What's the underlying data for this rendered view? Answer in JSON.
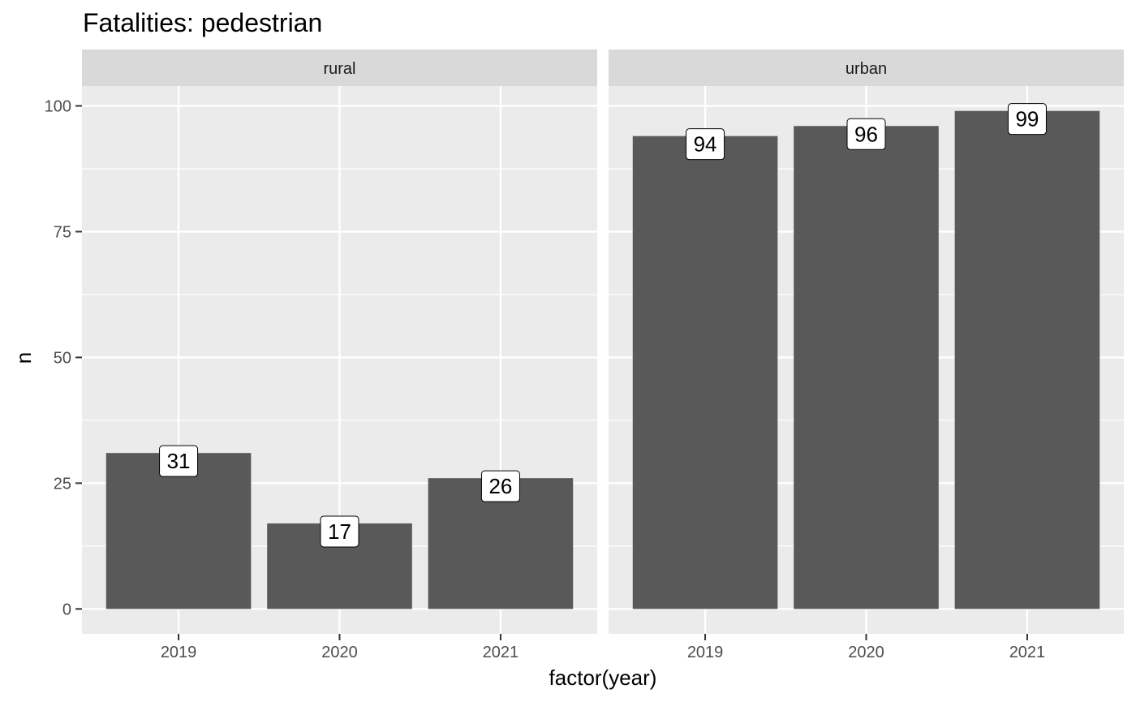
{
  "chart_data": {
    "type": "bar",
    "title": "Fatalities: pedestrian",
    "xlabel": "factor(year)",
    "ylabel": "n",
    "ylim": [
      -4.95,
      103.95
    ],
    "yticks": [
      0,
      25,
      50,
      75,
      100
    ],
    "grid": true,
    "categories": [
      "2019",
      "2020",
      "2021"
    ],
    "facets": [
      {
        "name": "rural",
        "values": [
          31,
          17,
          26
        ]
      },
      {
        "name": "urban",
        "values": [
          94,
          96,
          99
        ]
      }
    ],
    "colors": {
      "bar": "#595959",
      "panel": "#ebebeb",
      "strip": "#d9d9d9",
      "grid": "#ffffff"
    }
  }
}
